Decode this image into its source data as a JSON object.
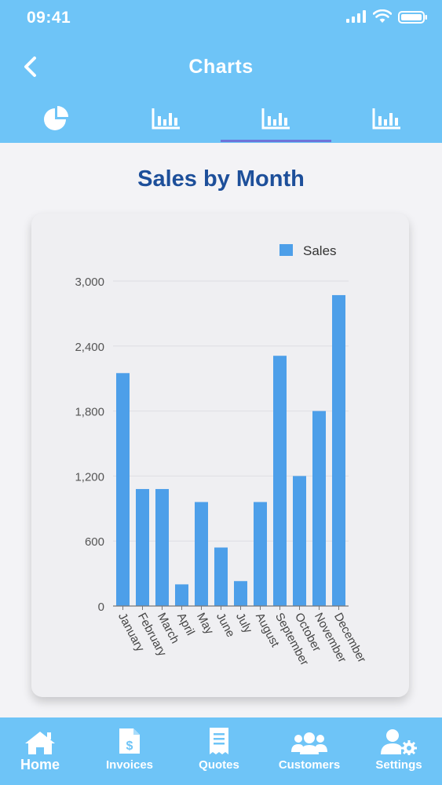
{
  "status_bar": {
    "time": "09:41"
  },
  "header": {
    "title": "Charts"
  },
  "tabs": [
    {
      "icon": "pie-chart-icon",
      "selected": false
    },
    {
      "icon": "bar-chart-icon",
      "selected": false
    },
    {
      "icon": "bar-chart-icon",
      "selected": true
    },
    {
      "icon": "bar-chart-icon",
      "selected": false
    }
  ],
  "chart_data": {
    "type": "bar",
    "title": "Sales by Month",
    "categories": [
      "January",
      "February",
      "March",
      "April",
      "May",
      "June",
      "July",
      "August",
      "September",
      "October",
      "November",
      "December"
    ],
    "series": [
      {
        "name": "Sales",
        "values": [
          2150,
          1080,
          1080,
          200,
          960,
          540,
          230,
          960,
          2310,
          1200,
          1800,
          2870
        ]
      }
    ],
    "ylim": [
      0,
      3000
    ],
    "yticks": [
      0,
      600,
      1200,
      1800,
      2400,
      3000
    ],
    "ytick_labels": [
      "0",
      "600",
      "1,200",
      "1,800",
      "2,400",
      "3,000"
    ],
    "xlabel": "",
    "ylabel": "",
    "grid": true,
    "legend": "top-right",
    "color": "#4d9fe9"
  },
  "bottom_nav": [
    {
      "label": "Home",
      "icon": "home-icon",
      "active": true
    },
    {
      "label": "Invoices",
      "icon": "invoice-icon",
      "active": false
    },
    {
      "label": "Quotes",
      "icon": "receipt-icon",
      "active": false
    },
    {
      "label": "Customers",
      "icon": "users-icon",
      "active": false
    },
    {
      "label": "Settings",
      "icon": "user-settings-icon",
      "active": false
    }
  ],
  "colors": {
    "header_bg": "#6ec4f7",
    "title_blue": "#1d4f9a",
    "bar": "#4d9fe9",
    "tab_indicator": "#6d73d9"
  }
}
